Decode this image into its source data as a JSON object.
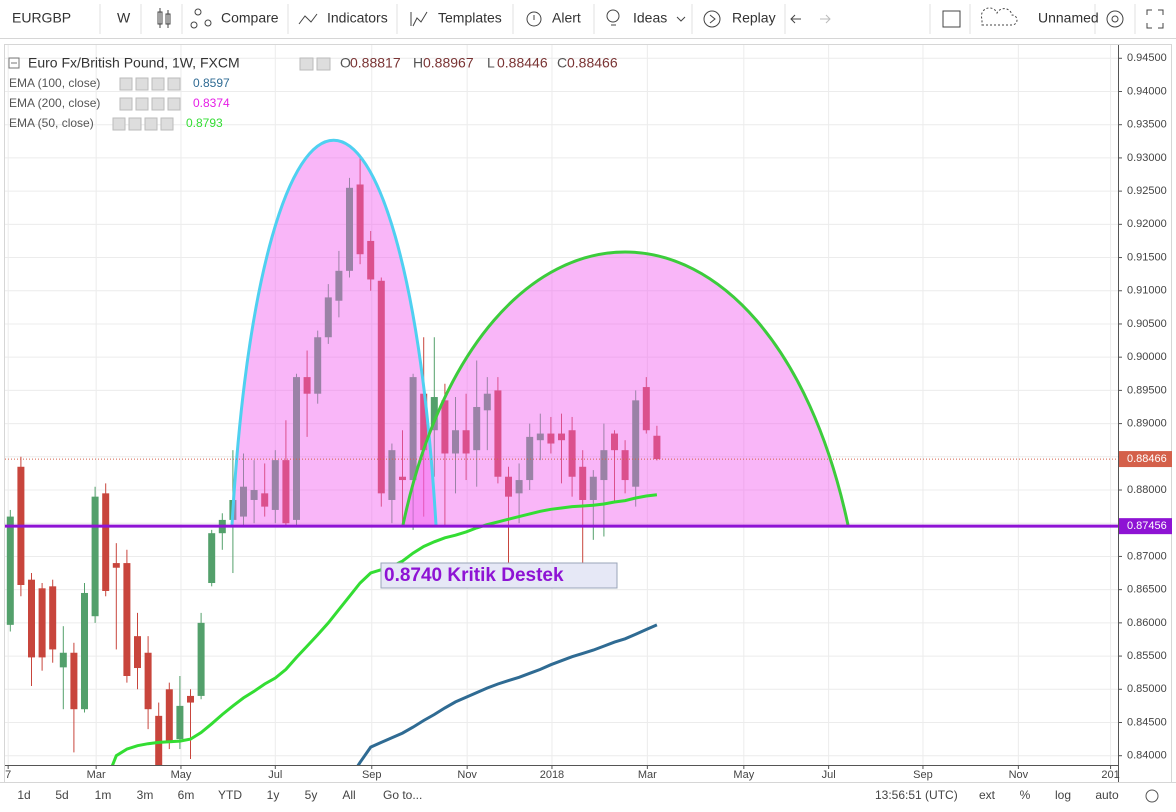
{
  "toolbar": {
    "symbol": "EURGBP",
    "interval": "W",
    "buttons": [
      "Compare",
      "Indicators",
      "Templates",
      "Alert",
      "Ideas",
      "Replay"
    ],
    "layout_name": "Unnamed"
  },
  "chart_data": {
    "type": "candlestick",
    "title": "Euro Fx/British Pound, 1W, FXCM",
    "ohlc_labels": [
      "O",
      "H",
      "L",
      "C"
    ],
    "x": [
      0,
      1,
      2,
      3,
      4,
      5,
      6,
      7,
      8,
      9,
      10,
      11,
      12,
      13,
      14,
      15,
      16,
      17,
      18,
      19,
      20,
      21,
      22,
      23,
      24,
      25,
      26,
      27,
      28,
      29,
      30,
      31,
      32,
      33,
      34,
      35,
      36,
      37,
      38,
      39,
      40,
      41,
      42,
      43,
      44,
      45,
      46,
      47,
      48,
      49,
      50,
      51,
      52,
      53,
      54,
      55,
      56,
      57,
      58,
      59,
      60,
      61
    ],
    "open": [
      0.8597,
      0.8835,
      0.8665,
      0.8652,
      0.8655,
      0.8533,
      0.8555,
      0.847,
      0.861,
      0.8795,
      0.869,
      0.869,
      0.858,
      0.8555,
      0.846,
      0.85,
      0.8425,
      0.849,
      0.849,
      0.866,
      0.8735,
      0.8755,
      0.876,
      0.8785,
      0.8795,
      0.877,
      0.8845,
      0.8755,
      0.897,
      0.8945,
      0.903,
      0.9085,
      0.913,
      0.926,
      0.9175,
      0.9115,
      0.8785,
      0.882,
      0.8815,
      0.8945,
      0.889,
      0.8935,
      0.8855,
      0.889,
      0.886,
      0.892,
      0.895,
      0.882,
      0.8795,
      0.8815,
      0.8875,
      0.8885,
      0.8885,
      0.889,
      0.8835,
      0.8785,
      0.8815,
      0.8885,
      0.886,
      0.8805,
      0.8955,
      0.88817
    ],
    "high": [
      0.877,
      0.885,
      0.8675,
      0.866,
      0.8665,
      0.8595,
      0.857,
      0.866,
      0.8805,
      0.881,
      0.872,
      0.871,
      0.8615,
      0.858,
      0.848,
      0.851,
      0.852,
      0.85,
      0.8615,
      0.874,
      0.8765,
      0.886,
      0.8855,
      0.8845,
      0.884,
      0.886,
      0.8905,
      0.8975,
      0.901,
      0.904,
      0.911,
      0.916,
      0.927,
      0.9305,
      0.919,
      0.912,
      0.887,
      0.889,
      0.8975,
      0.903,
      0.903,
      0.896,
      0.894,
      0.8945,
      0.8995,
      0.897,
      0.897,
      0.8835,
      0.884,
      0.89,
      0.8915,
      0.891,
      0.8915,
      0.891,
      0.886,
      0.883,
      0.89,
      0.889,
      0.8875,
      0.895,
      0.897,
      0.88967
    ],
    "low": [
      0.8587,
      0.864,
      0.8505,
      0.8528,
      0.854,
      0.847,
      0.8405,
      0.8465,
      0.86,
      0.864,
      0.856,
      0.851,
      0.85,
      0.844,
      0.8355,
      0.841,
      0.841,
      0.8395,
      0.8485,
      0.8655,
      0.871,
      0.8675,
      0.8745,
      0.875,
      0.876,
      0.875,
      0.8745,
      0.8745,
      0.888,
      0.893,
      0.902,
      0.906,
      0.912,
      0.914,
      0.91,
      0.8775,
      0.875,
      0.875,
      0.874,
      0.876,
      0.882,
      0.8745,
      0.8795,
      0.8815,
      0.8805,
      0.886,
      0.881,
      0.869,
      0.875,
      0.88,
      0.8845,
      0.8855,
      0.881,
      0.879,
      0.869,
      0.8725,
      0.873,
      0.878,
      0.8795,
      0.8775,
      0.8885,
      0.88446
    ],
    "close": [
      0.876,
      0.8657,
      0.8548,
      0.8548,
      0.856,
      0.8555,
      0.847,
      0.8645,
      0.879,
      0.8648,
      0.8683,
      0.852,
      0.8532,
      0.847,
      0.837,
      0.842,
      0.8475,
      0.848,
      0.86,
      0.8735,
      0.8755,
      0.8785,
      0.8805,
      0.88,
      0.8775,
      0.8845,
      0.875,
      0.897,
      0.8945,
      0.903,
      0.909,
      0.913,
      0.9255,
      0.9155,
      0.9117,
      0.8795,
      0.886,
      0.8815,
      0.897,
      0.886,
      0.894,
      0.8855,
      0.889,
      0.8855,
      0.8925,
      0.8945,
      0.882,
      0.879,
      0.8815,
      0.888,
      0.8885,
      0.887,
      0.8875,
      0.882,
      0.8785,
      0.882,
      0.886,
      0.886,
      0.8815,
      0.8935,
      0.889,
      0.88466
    ],
    "up_color": "#53a06b",
    "down_color": "#c8453c",
    "last_price_color": "#d4604a",
    "xlim": [
      -0.5,
      104.5
    ],
    "xticks": [
      {
        "value": -0.2,
        "label": "7"
      },
      {
        "value": 8.1,
        "label": "Mar"
      },
      {
        "value": 16.1,
        "label": "May"
      },
      {
        "value": 25,
        "label": "Jul"
      },
      {
        "value": 34.1,
        "label": "Sep"
      },
      {
        "value": 43.1,
        "label": "Nov"
      },
      {
        "value": 51.1,
        "label": "2018"
      },
      {
        "value": 60.1,
        "label": "Mar"
      },
      {
        "value": 69.2,
        "label": "May"
      },
      {
        "value": 77.2,
        "label": "Jul"
      },
      {
        "value": 86.1,
        "label": "Sep"
      },
      {
        "value": 95.1,
        "label": "Nov"
      },
      {
        "value": 103.8,
        "label": "201"
      }
    ],
    "ylim": [
      0.8386,
      0.947
    ],
    "yticks": [
      {
        "value": 0.84,
        "label": "0.84000"
      },
      {
        "value": 0.845,
        "label": "0.84500"
      },
      {
        "value": 0.85,
        "label": "0.85000"
      },
      {
        "value": 0.855,
        "label": "0.85500"
      },
      {
        "value": 0.86,
        "label": "0.86000"
      },
      {
        "value": 0.865,
        "label": "0.86500"
      },
      {
        "value": 0.87,
        "label": "0.87000"
      },
      {
        "value": 0.875,
        "label": "0.87500"
      },
      {
        "value": 0.88,
        "label": "0.88000"
      },
      {
        "value": 0.885,
        "label": "0.88500"
      },
      {
        "value": 0.89,
        "label": "0.89000"
      },
      {
        "value": 0.895,
        "label": "0.89500"
      },
      {
        "value": 0.9,
        "label": "0.90000"
      },
      {
        "value": 0.905,
        "label": "0.90500"
      },
      {
        "value": 0.91,
        "label": "0.91000"
      },
      {
        "value": 0.915,
        "label": "0.91500"
      },
      {
        "value": 0.92,
        "label": "0.92000"
      },
      {
        "value": 0.925,
        "label": "0.92500"
      },
      {
        "value": 0.93,
        "label": "0.93000"
      },
      {
        "value": 0.935,
        "label": "0.93500"
      },
      {
        "value": 0.94,
        "label": "0.94000"
      },
      {
        "value": 0.945,
        "label": "0.94500"
      }
    ],
    "grid": true,
    "indicators": [
      {
        "name": "EMA (100, close)",
        "value": 0.8597,
        "color": "#2f6b93",
        "values": [
          null,
          null,
          null,
          null,
          null,
          null,
          null,
          null,
          null,
          null,
          null,
          null,
          null,
          null,
          null,
          null,
          null,
          null,
          null,
          null,
          null,
          null,
          null,
          null,
          null,
          null,
          null,
          null,
          null,
          null,
          null,
          null,
          0.8365,
          0.839,
          0.8413,
          0.842,
          0.8427,
          0.8434,
          0.8443,
          0.8453,
          0.8462,
          0.8472,
          0.8481,
          0.8488,
          0.8495,
          0.8502,
          0.8508,
          0.8513,
          0.8518,
          0.8524,
          0.853,
          0.8537,
          0.8543,
          0.8549,
          0.8554,
          0.8559,
          0.8565,
          0.8571,
          0.8576,
          0.8583,
          0.859,
          0.8597
        ]
      },
      {
        "name": "EMA (200, close)",
        "value": 0.8374,
        "color": "#e61ee6"
      },
      {
        "name": "EMA (50, close)",
        "value": 0.8793,
        "color": "#33dd33",
        "values": [
          null,
          null,
          null,
          null,
          null,
          null,
          null,
          null,
          null,
          0.836,
          0.84,
          0.841,
          0.8415,
          0.8418,
          0.842,
          0.8421,
          0.8422,
          0.8425,
          0.8435,
          0.8448,
          0.8462,
          0.8475,
          0.8487,
          0.8497,
          0.8508,
          0.8517,
          0.853,
          0.8548,
          0.8565,
          0.8582,
          0.86,
          0.862,
          0.864,
          0.866,
          0.8675,
          0.868,
          0.8685,
          0.8693,
          0.8705,
          0.8715,
          0.8722,
          0.8728,
          0.8732,
          0.8737,
          0.8743,
          0.8748,
          0.8752,
          0.8756,
          0.876,
          0.8764,
          0.8768,
          0.8771,
          0.8773,
          0.8775,
          0.8776,
          0.8777,
          0.8779,
          0.8782,
          0.8784,
          0.8788,
          0.8791,
          0.8793
        ]
      }
    ],
    "support_line": {
      "value": 0.87456,
      "color": "#8e13d4"
    },
    "annotation": "0.8740 Kritik Destek"
  },
  "bottom_bar": {
    "ranges": [
      "1d",
      "5d",
      "1m",
      "3m",
      "6m",
      "YTD",
      "1y",
      "5y",
      "All"
    ],
    "goto": "Go to...",
    "time": "13:56:51 (UTC)",
    "options": [
      "ext",
      "%",
      "log",
      "auto"
    ]
  }
}
